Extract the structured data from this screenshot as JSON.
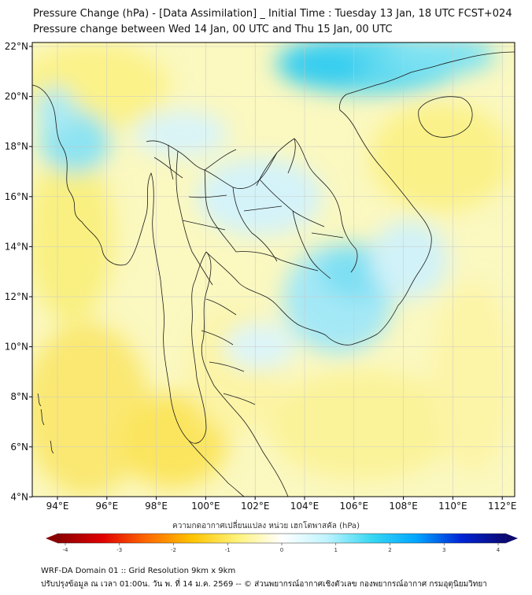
{
  "title_line1": "Pressure Change (hPa) - [Data Assimilation] _ Initial Time : Tuesday 13 Jan, 18 UTC FCST+024",
  "title_line2": "Pressure change between Wed 14 Jan, 00 UTC and Thu 15 Jan, 00 UTC",
  "axes": {
    "lon_labels": [
      "94°E",
      "96°E",
      "98°E",
      "100°E",
      "102°E",
      "104°E",
      "106°E",
      "108°E",
      "110°E",
      "112°E"
    ],
    "lat_labels": [
      "22°N",
      "20°N",
      "18°N",
      "16°N",
      "14°N",
      "12°N",
      "10°N",
      "8°N",
      "6°N",
      "4°N"
    ]
  },
  "colorbar": {
    "caption": "ความกดอากาศเปลี่ยนแปลง หน่วย เฮกโตพาสคัล (hPa)",
    "tick_labels": [
      "-4",
      "-3",
      "-2",
      "-1",
      "0",
      "1",
      "2",
      "3",
      "4"
    ],
    "min": -4,
    "max": 4,
    "colors": [
      "#8b0000",
      "#e00000",
      "#ff6a00",
      "#ffc400",
      "#fff27a",
      "#ffffff",
      "#bff4ff",
      "#38d7f2",
      "#00a6ff",
      "#0025d6",
      "#0c0870"
    ]
  },
  "footer_line1": "WRF-DA Domain 01 :: Grid Resolution 9km x 9km",
  "footer_line2": "ปรับปรุงข้อมูล ณ เวลา 01:00น. วัน พ. ที่ 14 ม.ค. 2569 -- © ส่วนพยากรณ์อากาศเชิงตัวเลข กองพยากรณ์อากาศ กรมอุตุนิยมวิทยา"
}
